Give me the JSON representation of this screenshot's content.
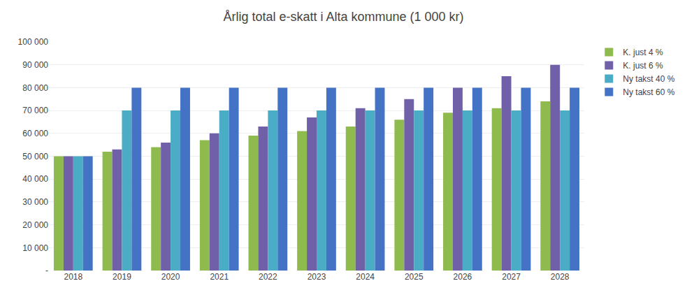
{
  "chart_data": {
    "type": "bar",
    "title": "Årlig total e-skatt i Alta kommune (1 000 kr)",
    "categories": [
      "2018",
      "2019",
      "2020",
      "2021",
      "2022",
      "2023",
      "2024",
      "2025",
      "2026",
      "2027",
      "2028"
    ],
    "series": [
      {
        "name": "K. just 4 %",
        "color": "#8fba4e",
        "values": [
          50000,
          52000,
          54000,
          57000,
          59000,
          61000,
          63000,
          66000,
          69000,
          71000,
          74000
        ]
      },
      {
        "name": "K. just 6 %",
        "color": "#7060a8",
        "values": [
          50000,
          53000,
          56000,
          60000,
          63000,
          67000,
          71000,
          75000,
          80000,
          85000,
          90000
        ]
      },
      {
        "name": "Ny takst 40 %",
        "color": "#4bacc6",
        "values": [
          50000,
          70000,
          70000,
          70000,
          70000,
          70000,
          70000,
          70000,
          70000,
          70000,
          70000
        ]
      },
      {
        "name": "Ny takst 60 %",
        "color": "#4472c4",
        "values": [
          50000,
          80000,
          80000,
          80000,
          80000,
          80000,
          80000,
          80000,
          80000,
          80000,
          80000
        ]
      }
    ],
    "ylim": [
      0,
      100000
    ],
    "yticks": [
      {
        "value": 0,
        "label": "-"
      },
      {
        "value": 10000,
        "label": "10 000"
      },
      {
        "value": 20000,
        "label": "20 000"
      },
      {
        "value": 30000,
        "label": "30 000"
      },
      {
        "value": 40000,
        "label": "40 000"
      },
      {
        "value": 50000,
        "label": "50 000"
      },
      {
        "value": 60000,
        "label": "60 000"
      },
      {
        "value": 70000,
        "label": "70 000"
      },
      {
        "value": 80000,
        "label": "80 000"
      },
      {
        "value": 90000,
        "label": "90 000"
      },
      {
        "value": 100000,
        "label": "100 000"
      }
    ],
    "grid": true,
    "legend": "right"
  }
}
